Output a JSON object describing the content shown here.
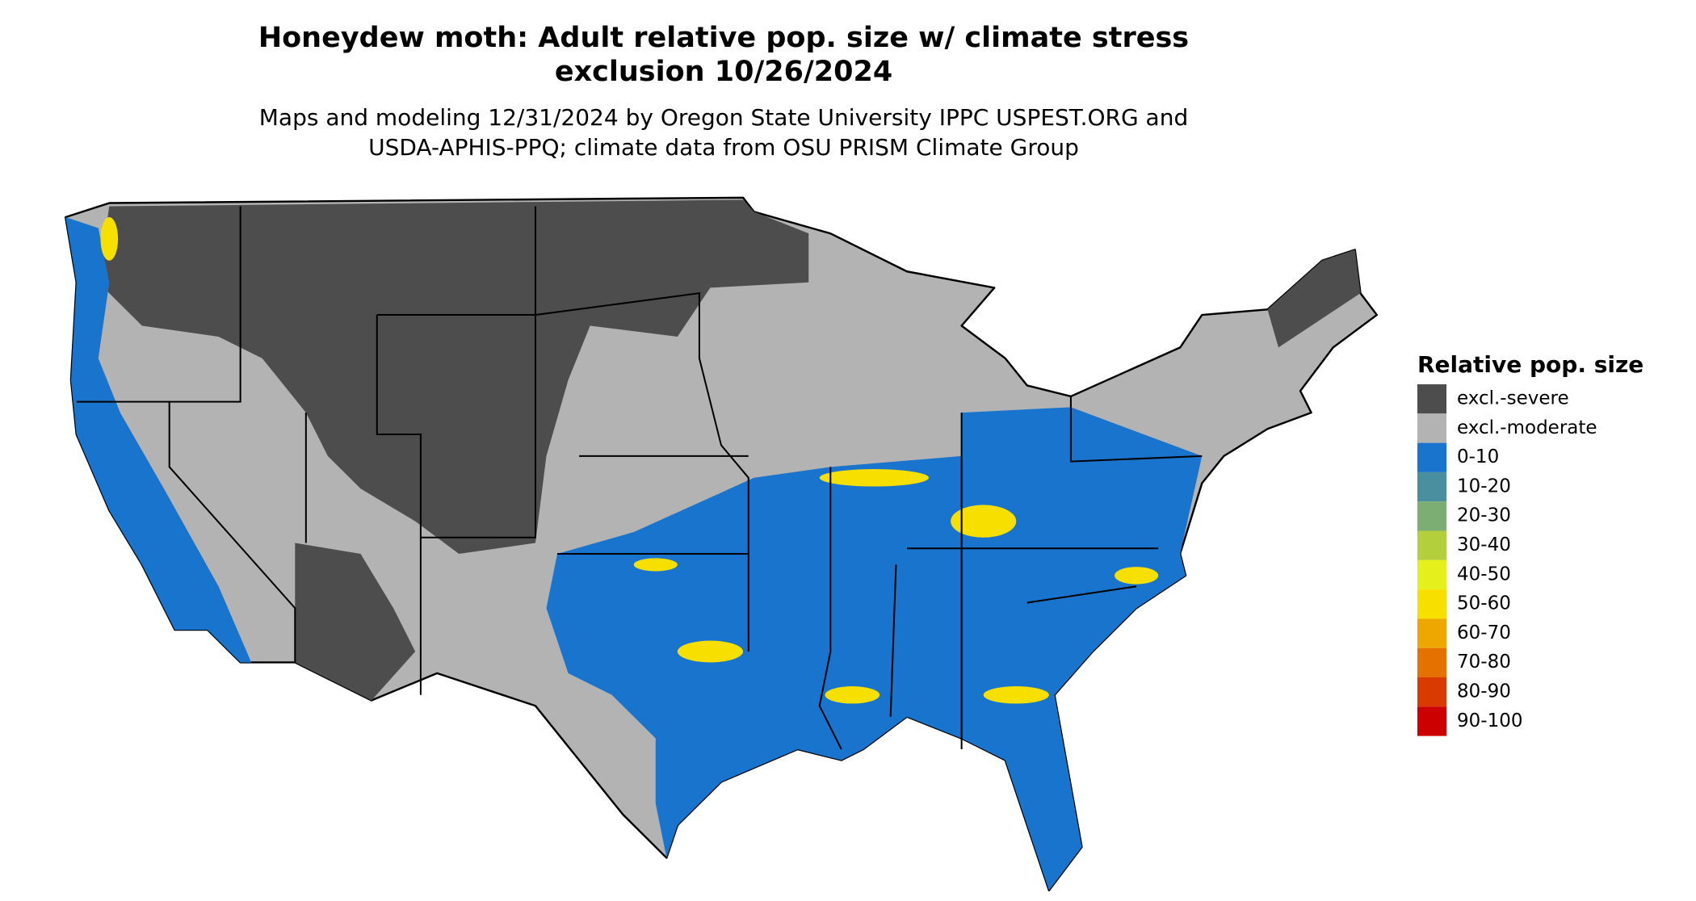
{
  "title": "Honeydew moth: Adult relative pop. size w/ climate stress\nexclusion 10/26/2024",
  "subtitle": "Maps and modeling 12/31/2024 by Oregon State University IPPC USPEST.ORG and\nUSDA-APHIS-PPQ; climate data from OSU PRISM Climate Group",
  "legend": {
    "title": "Relative pop. size",
    "items": [
      {
        "label": "excl.-severe",
        "color": "#4d4d4d"
      },
      {
        "label": "excl.-moderate",
        "color": "#b3b3b3"
      },
      {
        "label": "0-10",
        "color": "#1874cd"
      },
      {
        "label": "10-20",
        "color": "#4a8fa0"
      },
      {
        "label": "20-30",
        "color": "#7cae74"
      },
      {
        "label": "30-40",
        "color": "#b3cf3c"
      },
      {
        "label": "40-50",
        "color": "#e5ef1c"
      },
      {
        "label": "50-60",
        "color": "#f7df00"
      },
      {
        "label": "60-70",
        "color": "#eea700"
      },
      {
        "label": "70-80",
        "color": "#e57200"
      },
      {
        "label": "80-90",
        "color": "#d83a00"
      },
      {
        "label": "90-100",
        "color": "#cc0000"
      }
    ]
  }
}
